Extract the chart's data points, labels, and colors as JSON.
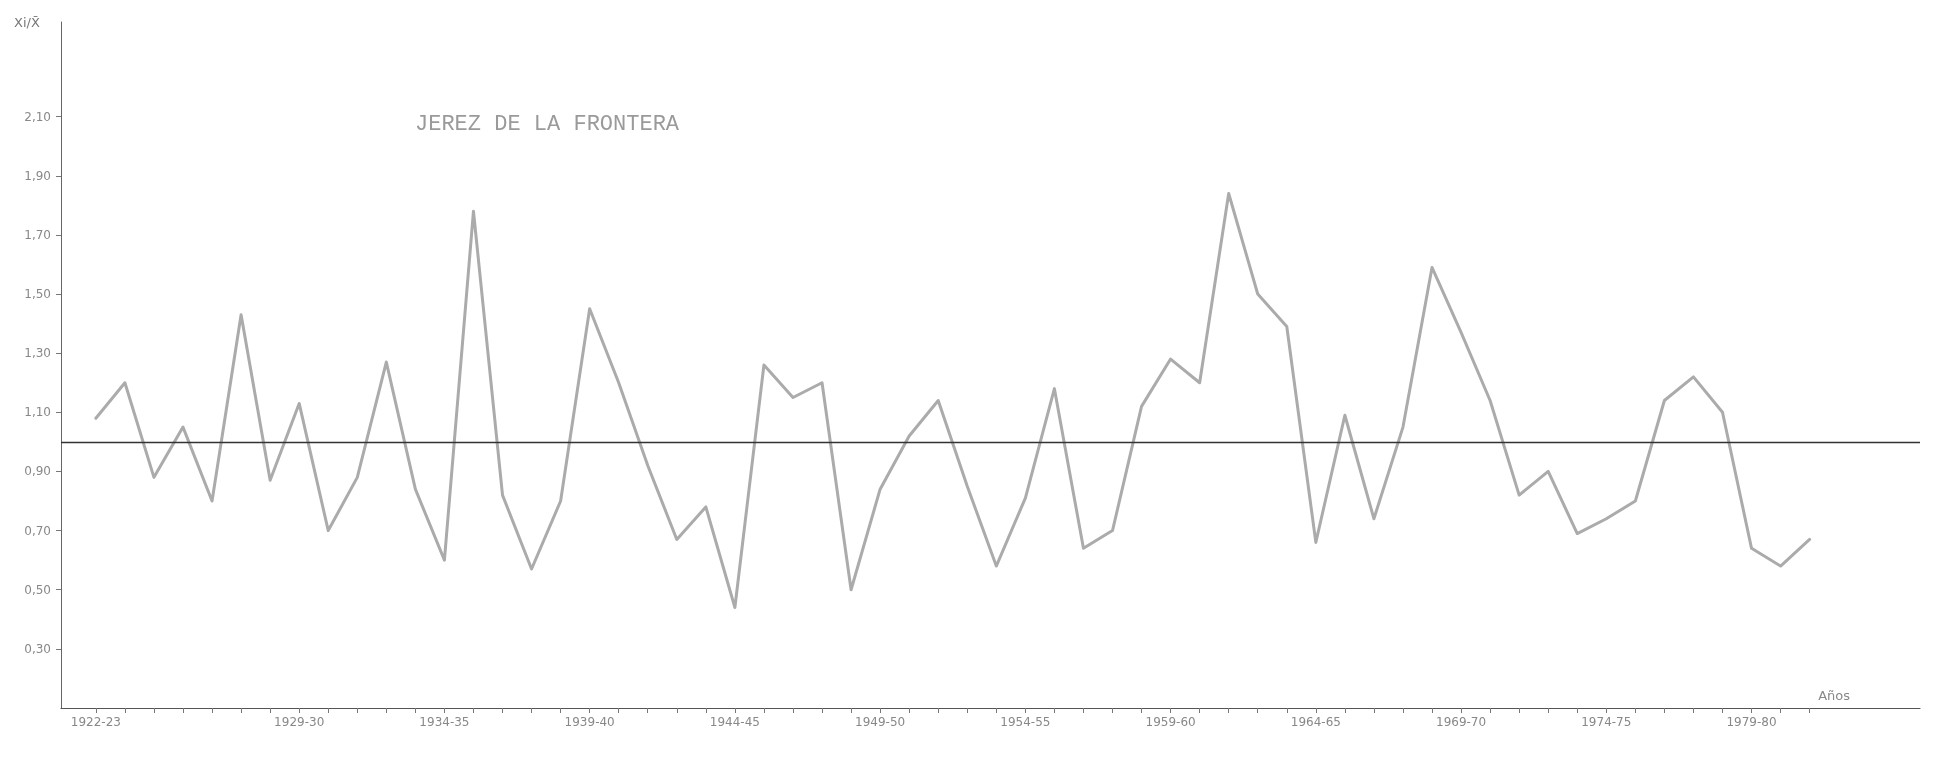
{
  "chart_data": {
    "type": "line",
    "title": "JEREZ DE LA FRONTERA",
    "xlabel": "Años",
    "ylabel": "Xi/X̄",
    "categories": [
      "1922-23",
      null,
      null,
      null,
      null,
      null,
      null,
      "1929-30",
      null,
      null,
      null,
      null,
      "1934-35",
      null,
      null,
      null,
      null,
      "1939-40",
      null,
      null,
      null,
      null,
      "1944-45",
      null,
      null,
      null,
      null,
      "1949-50",
      null,
      null,
      null,
      null,
      "1954-55",
      null,
      null,
      null,
      null,
      "1959-60",
      null,
      null,
      null,
      null,
      "1964-65",
      null,
      null,
      null,
      null,
      "1969-70",
      null,
      null,
      null,
      null,
      "1974-75",
      null,
      null,
      null,
      null,
      "1979-80",
      null,
      null
    ],
    "series": [
      {
        "color": "#ababab",
        "values": [
          1.08,
          1.2,
          0.88,
          1.05,
          0.8,
          1.43,
          0.87,
          1.13,
          0.7,
          0.88,
          1.27,
          0.84,
          0.6,
          1.78,
          0.82,
          0.57,
          0.8,
          1.45,
          1.2,
          0.92,
          0.67,
          0.78,
          0.44,
          1.26,
          1.15,
          1.2,
          0.5,
          0.84,
          1.02,
          1.14,
          0.85,
          0.58,
          0.81,
          1.18,
          0.64,
          0.7,
          1.12,
          1.28,
          1.2,
          1.84,
          1.5,
          1.39,
          0.66,
          1.09,
          0.74,
          1.05,
          1.59,
          1.37,
          1.14,
          0.82,
          0.9,
          0.69,
          0.74,
          0.8,
          1.14,
          1.22,
          1.1,
          0.64,
          0.58,
          0.67
        ]
      }
    ],
    "ylim": [
      0.1,
      2.42
    ],
    "yticks": [
      {
        "value": 0.3,
        "label": "0,30"
      },
      {
        "value": 0.5,
        "label": "0,50"
      },
      {
        "value": 0.7,
        "label": "0,70"
      },
      {
        "value": 0.9,
        "label": "0,90"
      },
      {
        "value": 1.1,
        "label": "1,10"
      },
      {
        "value": 1.3,
        "label": "1,30"
      },
      {
        "value": 1.5,
        "label": "1,50"
      },
      {
        "value": 1.7,
        "label": "1,70"
      },
      {
        "value": 1.9,
        "label": "1,90"
      },
      {
        "value": 2.1,
        "label": "2,10"
      }
    ],
    "ref_lines": [
      {
        "axis": "y",
        "value": 1.0,
        "color": "#333333"
      }
    ],
    "marker": "none",
    "line_style": "solid"
  }
}
